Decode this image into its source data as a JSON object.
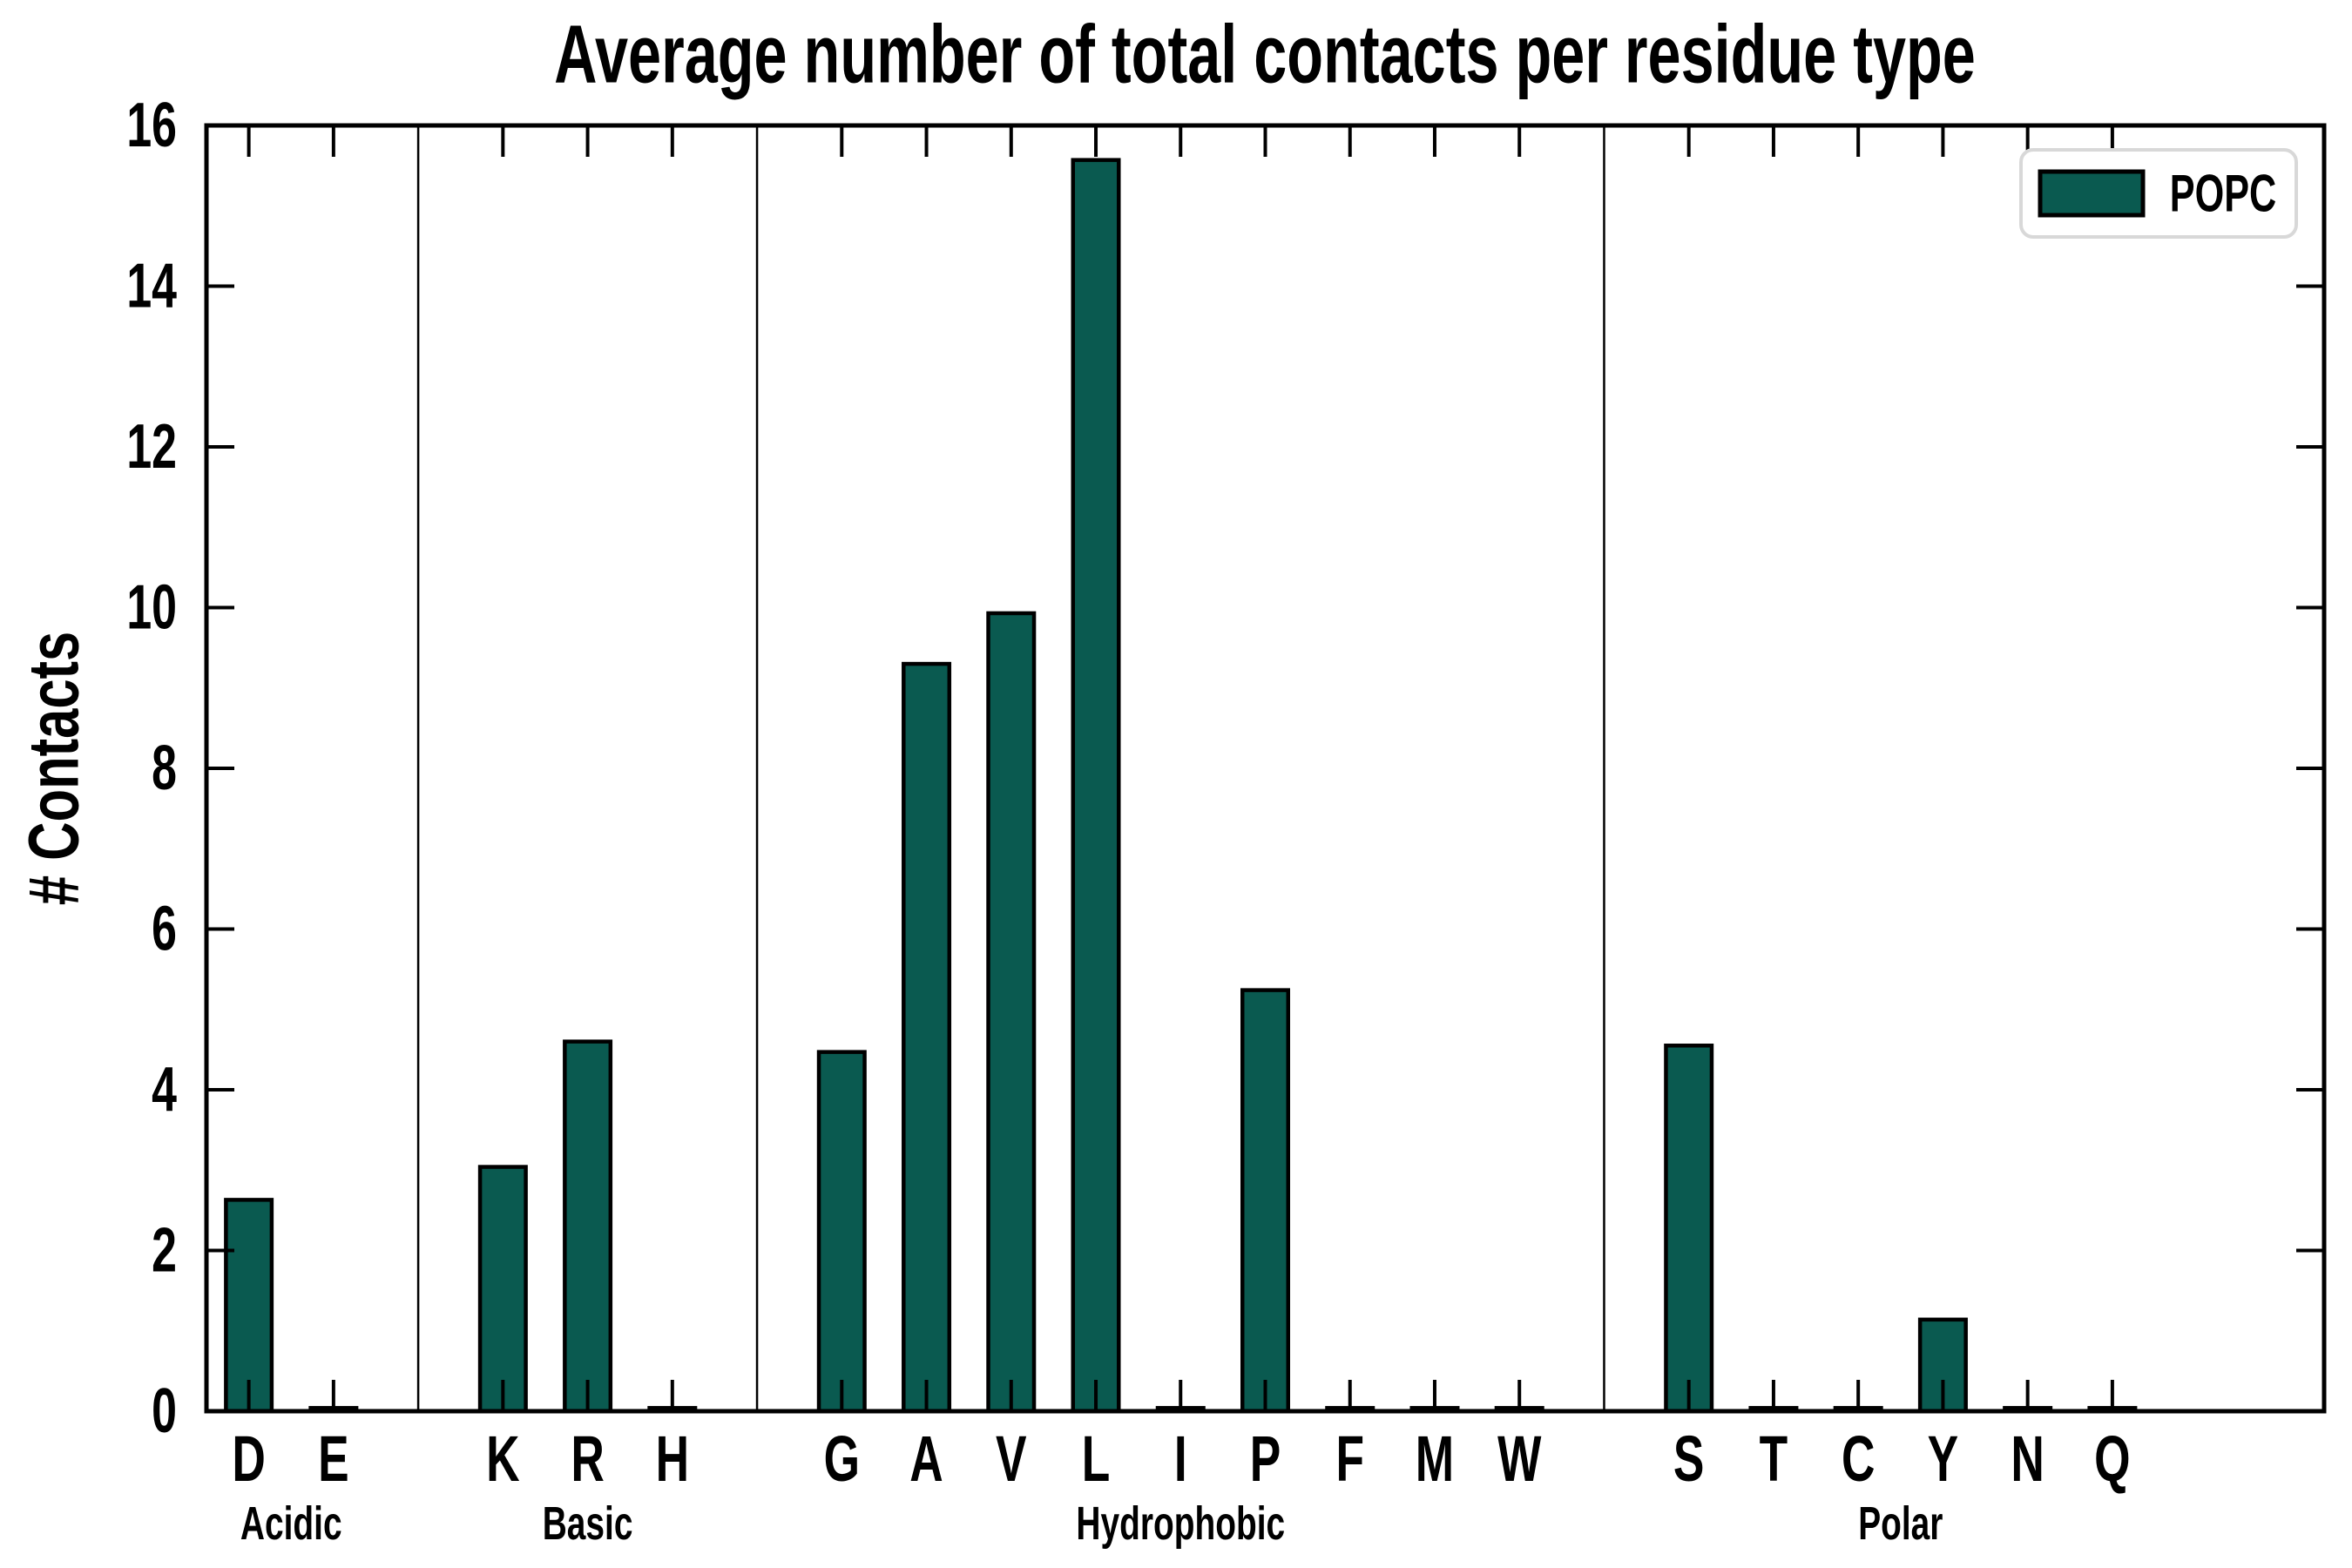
{
  "title": "Average number of total contacts per residue type",
  "ylabel": "# Contacts",
  "legend": {
    "label": "POPC"
  },
  "colors": {
    "bar_fill": "#0a5a50",
    "bar_edge": "#000000",
    "axis": "#000000",
    "legend_border": "#d8d8d8",
    "background": "#ffffff"
  },
  "chart_data": {
    "type": "bar",
    "title": "Average number of total contacts per residue type",
    "xlabel": "",
    "ylabel": "# Contacts",
    "ylim": [
      0,
      16
    ],
    "yticks": [
      0,
      2,
      4,
      6,
      8,
      10,
      12,
      14,
      16
    ],
    "grid": false,
    "legend_position": "upper right",
    "legend_entries": [
      "POPC"
    ],
    "tick_style": "inward, mirrored on top and right spines; thin black separator lines between residue groups",
    "groups": [
      {
        "label": "Acidic",
        "categories": [
          "D",
          "E"
        ],
        "values": [
          2.63,
          0.04
        ]
      },
      {
        "label": "Basic",
        "categories": [
          "K",
          "R",
          "H"
        ],
        "values": [
          3.04,
          4.6,
          0.04
        ]
      },
      {
        "label": "Hydrophobic",
        "categories": [
          "G",
          "A",
          "V",
          "L",
          "I",
          "P",
          "F",
          "M",
          "W"
        ],
        "values": [
          4.47,
          9.3,
          9.93,
          15.57,
          0.04,
          5.24,
          0.04,
          0.04,
          0.04
        ]
      },
      {
        "label": "Polar",
        "categories": [
          "S",
          "T",
          "C",
          "Y",
          "N",
          "Q"
        ],
        "values": [
          4.55,
          0.04,
          0.04,
          1.14,
          0.04,
          0.04
        ]
      }
    ],
    "series": [
      {
        "name": "POPC",
        "categories": [
          "D",
          "E",
          "K",
          "R",
          "H",
          "G",
          "A",
          "V",
          "L",
          "I",
          "P",
          "F",
          "M",
          "W",
          "S",
          "T",
          "C",
          "Y",
          "N",
          "Q"
        ],
        "values": [
          2.63,
          0.04,
          3.04,
          4.6,
          0.04,
          4.47,
          9.3,
          9.93,
          15.57,
          0.04,
          5.24,
          0.04,
          0.04,
          0.04,
          4.55,
          0.04,
          0.04,
          1.14,
          0.04,
          0.04
        ]
      }
    ]
  }
}
